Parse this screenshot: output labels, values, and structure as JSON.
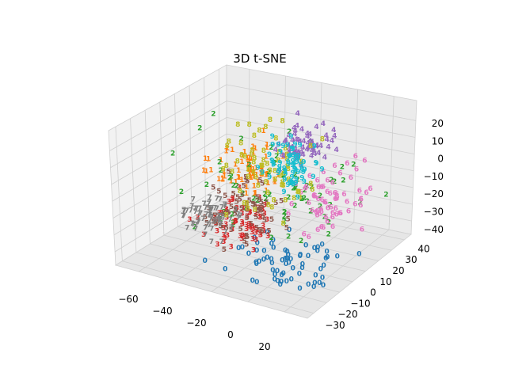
{
  "chart_data": {
    "type": "scatter",
    "projection": "3d",
    "title": "3D t-SNE",
    "marker": "digit-label",
    "xticks": [
      "−60",
      "−40",
      "−20",
      "0",
      "20"
    ],
    "yticks": [
      "−30",
      "−20",
      "−10",
      "0",
      "10",
      "20",
      "30",
      "40"
    ],
    "zticks": [
      "20",
      "10",
      "0",
      "−10",
      "−20",
      "−30",
      "−40"
    ],
    "xlim": [
      -70,
      35
    ],
    "ylim": [
      -35,
      45
    ],
    "zlim": [
      -45,
      28
    ],
    "grid": true,
    "legend": "none",
    "series": [
      {
        "label": "0",
        "color": "#1f77b4",
        "cluster_center": [
          10,
          -15,
          -32
        ],
        "spread": [
          12,
          10,
          4
        ]
      },
      {
        "label": "1",
        "color": "#ff7f0e",
        "cluster_center": [
          -25,
          0,
          5
        ],
        "spread": [
          8,
          8,
          6
        ]
      },
      {
        "label": "2",
        "color": "#2ca02c",
        "cluster_center": [
          -10,
          0,
          -5
        ],
        "spread": [
          20,
          15,
          12
        ]
      },
      {
        "label": "3",
        "color": "#d62728",
        "cluster_center": [
          -20,
          -10,
          -20
        ],
        "spread": [
          8,
          8,
          6
        ]
      },
      {
        "label": "4",
        "color": "#9467bd",
        "cluster_center": [
          0,
          10,
          18
        ],
        "spread": [
          6,
          6,
          5
        ]
      },
      {
        "label": "5",
        "color": "#8c564b",
        "cluster_center": [
          -20,
          -5,
          -15
        ],
        "spread": [
          10,
          8,
          8
        ]
      },
      {
        "label": "6",
        "color": "#e377c2",
        "cluster_center": [
          10,
          15,
          -12
        ],
        "spread": [
          8,
          10,
          8
        ]
      },
      {
        "label": "7",
        "color": "#7f7f7f",
        "cluster_center": [
          -40,
          -5,
          -25
        ],
        "spread": [
          6,
          6,
          4
        ]
      },
      {
        "label": "8",
        "color": "#bcbd22",
        "cluster_center": [
          -15,
          0,
          5
        ],
        "spread": [
          10,
          10,
          12
        ]
      },
      {
        "label": "9",
        "color": "#17becf",
        "cluster_center": [
          -5,
          5,
          10
        ],
        "spread": [
          6,
          6,
          6
        ]
      }
    ]
  }
}
